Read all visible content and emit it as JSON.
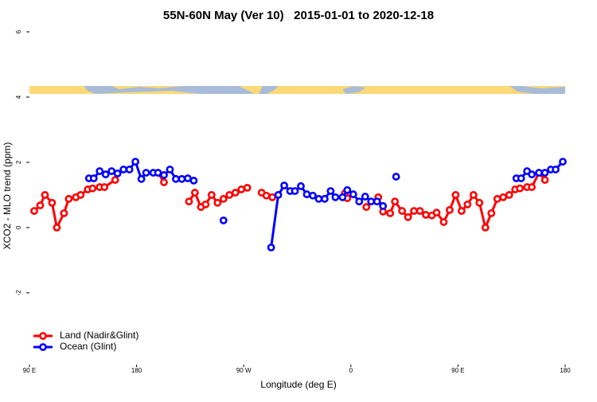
{
  "chart_data": {
    "type": "line",
    "title": "55N-60N May (Ver 10)   2015-01-01 to 2020-12-18",
    "x_label": "Longitude (deg E)",
    "y_label": "XCO2 - MLO trend (ppm)",
    "xlim": [
      90,
      540
    ],
    "xticks": [
      {
        "value": 90,
        "label": "90 E"
      },
      {
        "value": 180,
        "label": "180"
      },
      {
        "value": 270,
        "label": "90 W"
      },
      {
        "value": 360,
        "label": "0"
      },
      {
        "value": 450,
        "label": "90 E"
      },
      {
        "value": 540,
        "label": "180"
      }
    ],
    "ylim": [
      -4.2,
      6
    ],
    "yticks": [
      -2,
      0,
      2,
      4,
      6
    ],
    "legend": "bottom-left",
    "series": [
      {
        "name": "Land (Nadir&Glint)",
        "color": "#ff0000",
        "x": [
          94,
          99,
          103,
          109,
          113,
          119,
          123,
          129,
          133,
          139,
          143,
          149,
          153,
          162,
          null,
          198,
          203,
          null,
          224,
          229,
          234,
          238,
          243,
          248,
          253,
          258,
          263,
          268,
          273,
          null,
          285,
          289,
          294,
          null,
          355,
          357,
          null,
          373,
          383,
          387,
          393,
          397,
          403,
          408,
          413,
          418,
          423,
          428,
          432,
          438,
          443,
          448,
          453,
          458,
          463,
          468,
          473,
          478,
          483,
          488,
          493,
          498,
          502,
          508,
          512,
          518,
          523
        ],
        "values": [
          0.51,
          0.68,
          1.0,
          0.76,
          0,
          0.44,
          0.88,
          0.93,
          1.0,
          1.17,
          1.2,
          1.24,
          1.24,
          1.46,
          null,
          1.68,
          1.39,
          null,
          0.8,
          1.07,
          0.63,
          0.71,
          1.0,
          0.76,
          0.88,
          1.0,
          1.07,
          1.17,
          1.22,
          null,
          1.07,
          0.98,
          0.93,
          null,
          1.05,
          0.9,
          null,
          0.63,
          0.93,
          0.49,
          0.44,
          0.8,
          0.51,
          0.32,
          0.51,
          0.51,
          0.39,
          0.37,
          0.46,
          0.17,
          0.54,
          1.0,
          0.51,
          0.71,
          1.0,
          0.76,
          0,
          0.44,
          0.88,
          0.93,
          1.0,
          1.17,
          1.2,
          1.24,
          1.24,
          1.68,
          1.46
        ]
      },
      {
        "name": "Ocean (Glint)",
        "color": "#0000ff",
        "x": [
          140,
          144,
          149,
          154,
          159,
          164,
          169,
          174,
          179,
          184,
          188,
          194,
          198,
          203,
          208,
          213,
          218,
          223,
          228,
          null,
          253,
          null,
          293,
          299,
          304,
          309,
          313,
          318,
          323,
          328,
          333,
          338,
          343,
          347,
          353,
          357,
          362,
          367,
          372,
          377,
          382,
          387,
          null,
          398,
          null,
          499,
          503,
          508,
          512,
          518,
          523,
          528,
          532,
          538
        ],
        "values": [
          1.51,
          1.51,
          1.73,
          1.63,
          1.73,
          1.66,
          1.78,
          1.78,
          2.02,
          1.49,
          1.68,
          1.68,
          1.68,
          1.61,
          1.78,
          1.49,
          1.49,
          1.51,
          1.44,
          null,
          0.22,
          null,
          -0.61,
          1.0,
          1.29,
          1.12,
          1.12,
          1.27,
          1.02,
          0.98,
          0.88,
          0.88,
          1.12,
          0.93,
          0.93,
          1.15,
          1.02,
          0.8,
          0.95,
          0.8,
          0.8,
          0.66,
          null,
          1.56,
          null,
          1.51,
          1.51,
          1.73,
          1.63,
          1.68,
          1.68,
          1.78,
          1.78,
          2.02
        ]
      }
    ]
  }
}
